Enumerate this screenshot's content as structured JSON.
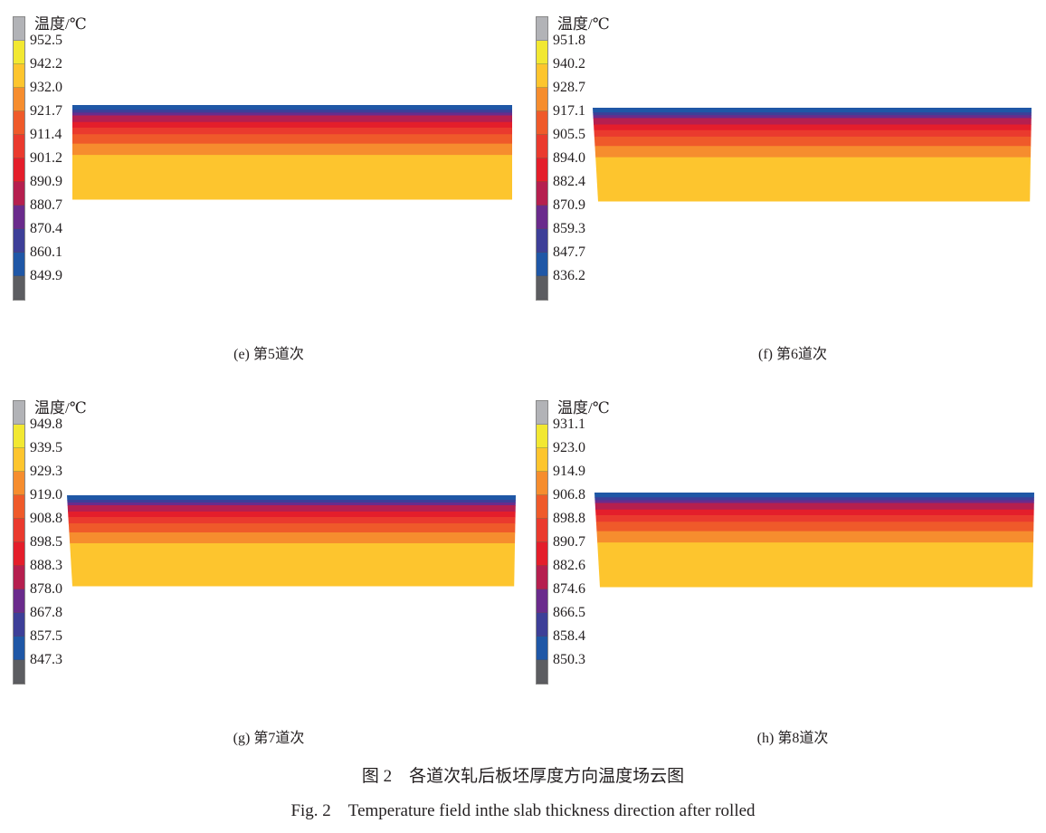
{
  "legend_colors": [
    "#b2b3b7",
    "#f2e832",
    "#fdc52e",
    "#f68d2e",
    "#ef5a2a",
    "#ea3a2e",
    "#e41e2b",
    "#b51f4f",
    "#6a2b8c",
    "#3d3f98",
    "#1f57a6",
    "#5c5d61"
  ],
  "panels": [
    {
      "id": "e",
      "legend_title": "温度/℃",
      "labels": [
        "952.5",
        "942.2",
        "932.0",
        "921.7",
        "911.4",
        "901.2",
        "890.9",
        "880.7",
        "870.4",
        "860.1",
        "849.9"
      ],
      "caption": "(e) 第5道次"
    },
    {
      "id": "f",
      "legend_title": "温度/℃",
      "labels": [
        "951.8",
        "940.2",
        "928.7",
        "917.1",
        "905.5",
        "894.0",
        "882.4",
        "870.9",
        "859.3",
        "847.7",
        "836.2"
      ],
      "caption": "(f) 第6道次"
    },
    {
      "id": "g",
      "legend_title": "温度/℃",
      "labels": [
        "949.8",
        "939.5",
        "929.3",
        "919.0",
        "908.8",
        "898.5",
        "888.3",
        "878.0",
        "867.8",
        "857.5",
        "847.3"
      ],
      "caption": "(g) 第7道次"
    },
    {
      "id": "h",
      "legend_title": "温度/℃",
      "labels": [
        "931.1",
        "923.0",
        "914.9",
        "906.8",
        "898.8",
        "890.7",
        "882.6",
        "874.6",
        "866.5",
        "858.4",
        "850.3"
      ],
      "caption": "(h) 第8道次"
    }
  ],
  "figure_caption_cn": "图 2　各道次轧后板坯厚度方向温度场云图",
  "figure_caption_en": "Fig. 2　Temperature field inthe slab thickness direction after rolled"
}
